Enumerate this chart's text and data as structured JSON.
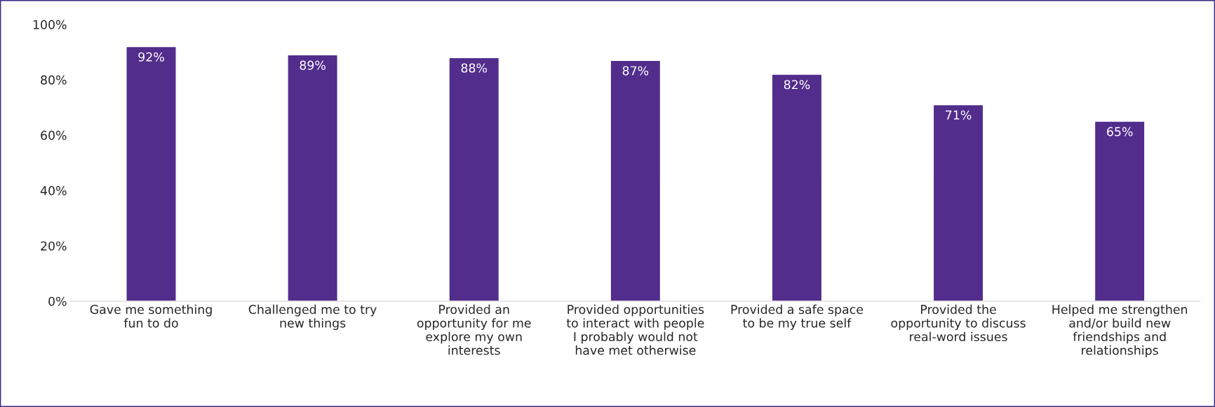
{
  "chart_data": {
    "type": "bar",
    "categories": [
      "Gave me something\nfun to do",
      "Challenged me to try\nnew things",
      "Provided an\nopportunity for me\nexplore my own\ninterests",
      "Provided opportunities\nto interact with people\nI probably would not\nhave met otherwise",
      "Provided a safe space\nto be my true self",
      "Provided the\nopportunity to discuss\nreal-word issues",
      "Helped me strengthen\nand/or build new\nfriendships and\nrelationships"
    ],
    "values": [
      92,
      89,
      88,
      87,
      82,
      71,
      65
    ],
    "value_labels": [
      "92%",
      "89%",
      "88%",
      "87%",
      "82%",
      "71%",
      "65%"
    ],
    "color": "#522d8c",
    "ylim": [
      0,
      100
    ],
    "yticks": [
      {
        "value": 0,
        "label": "0%"
      },
      {
        "value": 20,
        "label": "20%"
      },
      {
        "value": 40,
        "label": "40%"
      },
      {
        "value": 60,
        "label": "60%"
      },
      {
        "value": 80,
        "label": "80%"
      },
      {
        "value": 100,
        "label": "100%"
      }
    ],
    "grid": false,
    "legend": false
  }
}
